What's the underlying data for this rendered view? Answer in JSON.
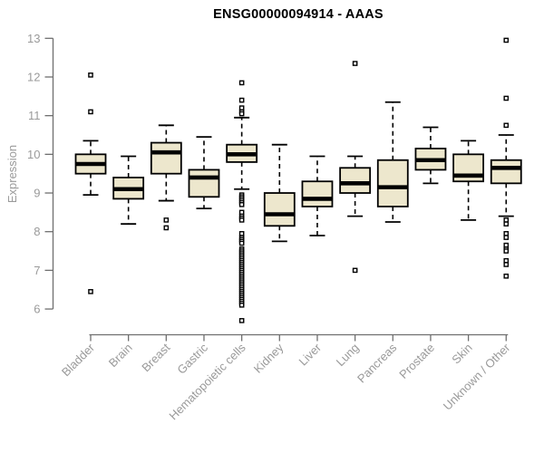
{
  "title": "ENSG00000094914 - AAAS",
  "chart_data": {
    "type": "boxplot",
    "title": "ENSG00000094914 - AAAS",
    "xlabel": "",
    "ylabel": "Expression",
    "ylim": [
      6,
      13
    ],
    "yticks": [
      6,
      7,
      8,
      9,
      10,
      11,
      12,
      13
    ],
    "grid": false,
    "legend": false,
    "categories": [
      "Bladder",
      "Brain",
      "Breast",
      "Gastric",
      "Hematopoietic cells",
      "Kidney",
      "Liver",
      "Lung",
      "Pancreas",
      "Prostate",
      "Skin",
      "Unknown / Other"
    ],
    "series": [
      {
        "category": "Bladder",
        "whisker_low": 8.95,
        "q1": 9.5,
        "median": 9.75,
        "q3": 10.0,
        "whisker_high": 10.35,
        "outliers": [
          12.05,
          11.1,
          6.45
        ]
      },
      {
        "category": "Brain",
        "whisker_low": 8.2,
        "q1": 8.85,
        "median": 9.1,
        "q3": 9.4,
        "whisker_high": 9.95,
        "outliers": []
      },
      {
        "category": "Breast",
        "whisker_low": 8.8,
        "q1": 9.5,
        "median": 10.05,
        "q3": 10.3,
        "whisker_high": 10.75,
        "outliers": [
          8.3,
          8.1
        ]
      },
      {
        "category": "Gastric",
        "whisker_low": 8.6,
        "q1": 8.9,
        "median": 9.4,
        "q3": 9.6,
        "whisker_high": 10.45,
        "outliers": []
      },
      {
        "category": "Hematopoietic cells",
        "whisker_low": 9.1,
        "q1": 9.8,
        "median": 10.0,
        "q3": 10.25,
        "whisker_high": 10.95,
        "outliers": [
          11.85,
          11.4,
          11.2,
          11.1,
          11.05,
          8.95,
          8.9,
          8.85,
          8.8,
          8.75,
          8.7,
          8.5,
          8.4,
          8.35,
          8.3,
          7.95,
          7.85,
          7.8,
          7.75,
          7.7,
          7.55,
          7.5,
          7.45,
          7.4,
          7.35,
          7.3,
          7.25,
          7.2,
          7.15,
          7.1,
          7.05,
          7.0,
          6.95,
          6.9,
          6.85,
          6.8,
          6.75,
          6.7,
          6.65,
          6.6,
          6.55,
          6.5,
          6.45,
          6.4,
          6.35,
          6.3,
          6.25,
          6.2,
          6.15,
          6.1,
          5.7
        ]
      },
      {
        "category": "Kidney",
        "whisker_low": 7.75,
        "q1": 8.15,
        "median": 8.45,
        "q3": 9.0,
        "whisker_high": 10.25,
        "outliers": []
      },
      {
        "category": "Liver",
        "whisker_low": 7.9,
        "q1": 8.65,
        "median": 8.85,
        "q3": 9.3,
        "whisker_high": 9.95,
        "outliers": []
      },
      {
        "category": "Lung",
        "whisker_low": 8.4,
        "q1": 9.0,
        "median": 9.25,
        "q3": 9.65,
        "whisker_high": 9.95,
        "outliers": [
          12.35,
          7.0
        ]
      },
      {
        "category": "Pancreas",
        "whisker_low": 8.25,
        "q1": 8.65,
        "median": 9.15,
        "q3": 9.85,
        "whisker_high": 11.35,
        "outliers": []
      },
      {
        "category": "Prostate",
        "whisker_low": 9.25,
        "q1": 9.6,
        "median": 9.85,
        "q3": 10.15,
        "whisker_high": 10.7,
        "outliers": []
      },
      {
        "category": "Skin",
        "whisker_low": 8.3,
        "q1": 9.3,
        "median": 9.45,
        "q3": 10.0,
        "whisker_high": 10.35,
        "outliers": []
      },
      {
        "category": "Unknown / Other",
        "whisker_low": 8.4,
        "q1": 9.25,
        "median": 9.65,
        "q3": 9.85,
        "whisker_high": 10.5,
        "outliers": [
          12.95,
          11.45,
          10.75,
          8.3,
          8.2,
          7.95,
          7.85,
          7.65,
          7.55,
          7.5,
          7.25,
          7.15,
          6.85
        ]
      }
    ],
    "colors": {
      "box_fill": "#EDE7CD",
      "box_border": "#000000",
      "median": "#000000",
      "whisker": "#000000",
      "outlier_fill": "#ffffff",
      "outlier_border": "#000000",
      "axis_line": "#6f6f6f",
      "tick_label": "#9a9a9a",
      "title": "#000000",
      "background": "#ffffff"
    }
  }
}
